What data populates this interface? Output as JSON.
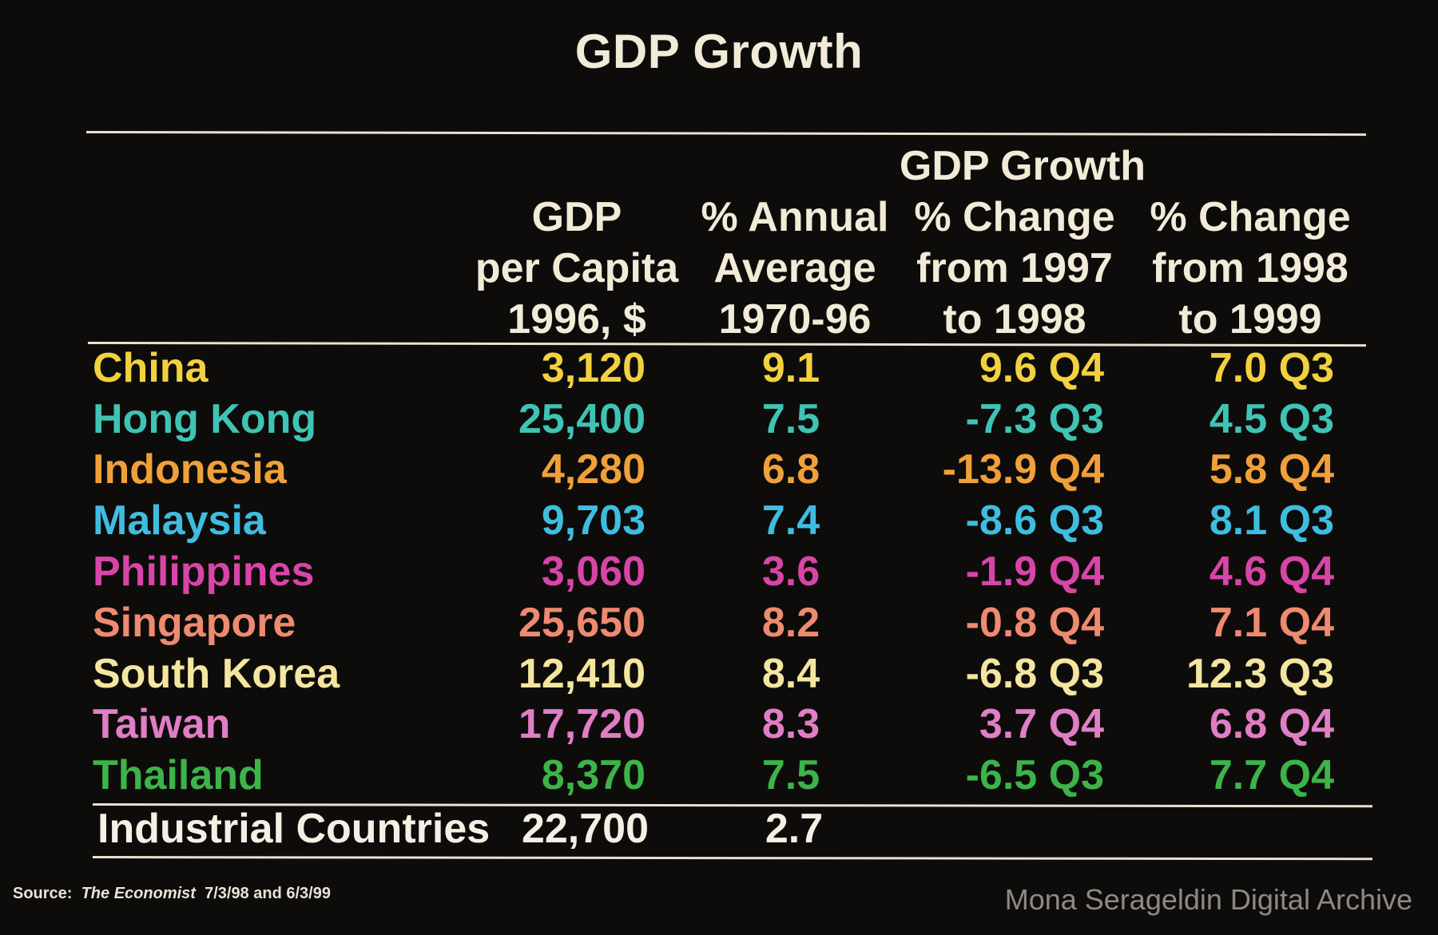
{
  "title": "GDP Growth",
  "table": {
    "group_header": "GDP Growth",
    "columns": [
      "GDP\nper Capita\n1996, $",
      "% Annual\nAverage\n1970-96",
      "% Change\nfrom 1997\nto 1998",
      "% Change\nfrom 1998\nto 1999"
    ],
    "rows": [
      {
        "country": "China",
        "gdp_per_capita": "3,120",
        "annual_avg": "9.1",
        "change_97_98": "9.6 Q4",
        "change_98_99": "7.0 Q3",
        "color": "#f2d13f"
      },
      {
        "country": "Hong Kong",
        "gdp_per_capita": "25,400",
        "annual_avg": "7.5",
        "change_97_98": "-7.3 Q3",
        "change_98_99": "4.5 Q3",
        "color": "#3fc4b4"
      },
      {
        "country": "Indonesia",
        "gdp_per_capita": "4,280",
        "annual_avg": "6.8",
        "change_97_98": "-13.9 Q4",
        "change_98_99": "5.8 Q4",
        "color": "#f0a03a"
      },
      {
        "country": "Malaysia",
        "gdp_per_capita": "9,703",
        "annual_avg": "7.4",
        "change_97_98": "-8.6 Q3",
        "change_98_99": "8.1 Q3",
        "color": "#3fbde0"
      },
      {
        "country": "Philippines",
        "gdp_per_capita": "3,060",
        "annual_avg": "3.6",
        "change_97_98": "-1.9 Q4",
        "change_98_99": "4.6 Q4",
        "color": "#d845a8"
      },
      {
        "country": "Singapore",
        "gdp_per_capita": "25,650",
        "annual_avg": "8.2",
        "change_97_98": "-0.8 Q4",
        "change_98_99": "7.1 Q4",
        "color": "#ee8a70"
      },
      {
        "country": "South Korea",
        "gdp_per_capita": "12,410",
        "annual_avg": "8.4",
        "change_97_98": "-6.8 Q3",
        "change_98_99": "12.3 Q3",
        "color": "#f4e6a0"
      },
      {
        "country": "Taiwan",
        "gdp_per_capita": "17,720",
        "annual_avg": "8.3",
        "change_97_98": "3.7 Q4",
        "change_98_99": "6.8 Q4",
        "color": "#e07ec6"
      },
      {
        "country": "Thailand",
        "gdp_per_capita": "8,370",
        "annual_avg": "7.5",
        "change_97_98": "-6.5 Q3",
        "change_98_99": "7.7 Q4",
        "color": "#3cb44a"
      }
    ],
    "industrial": {
      "label": "Industrial Countries",
      "gdp_per_capita": "22,700",
      "annual_avg": "2.7"
    }
  },
  "source": {
    "prefix": "Source:",
    "journal": "The Economist",
    "dates": "7/3/98 and 6/3/99"
  },
  "watermark": "Mona Serageldin Digital Archive"
}
